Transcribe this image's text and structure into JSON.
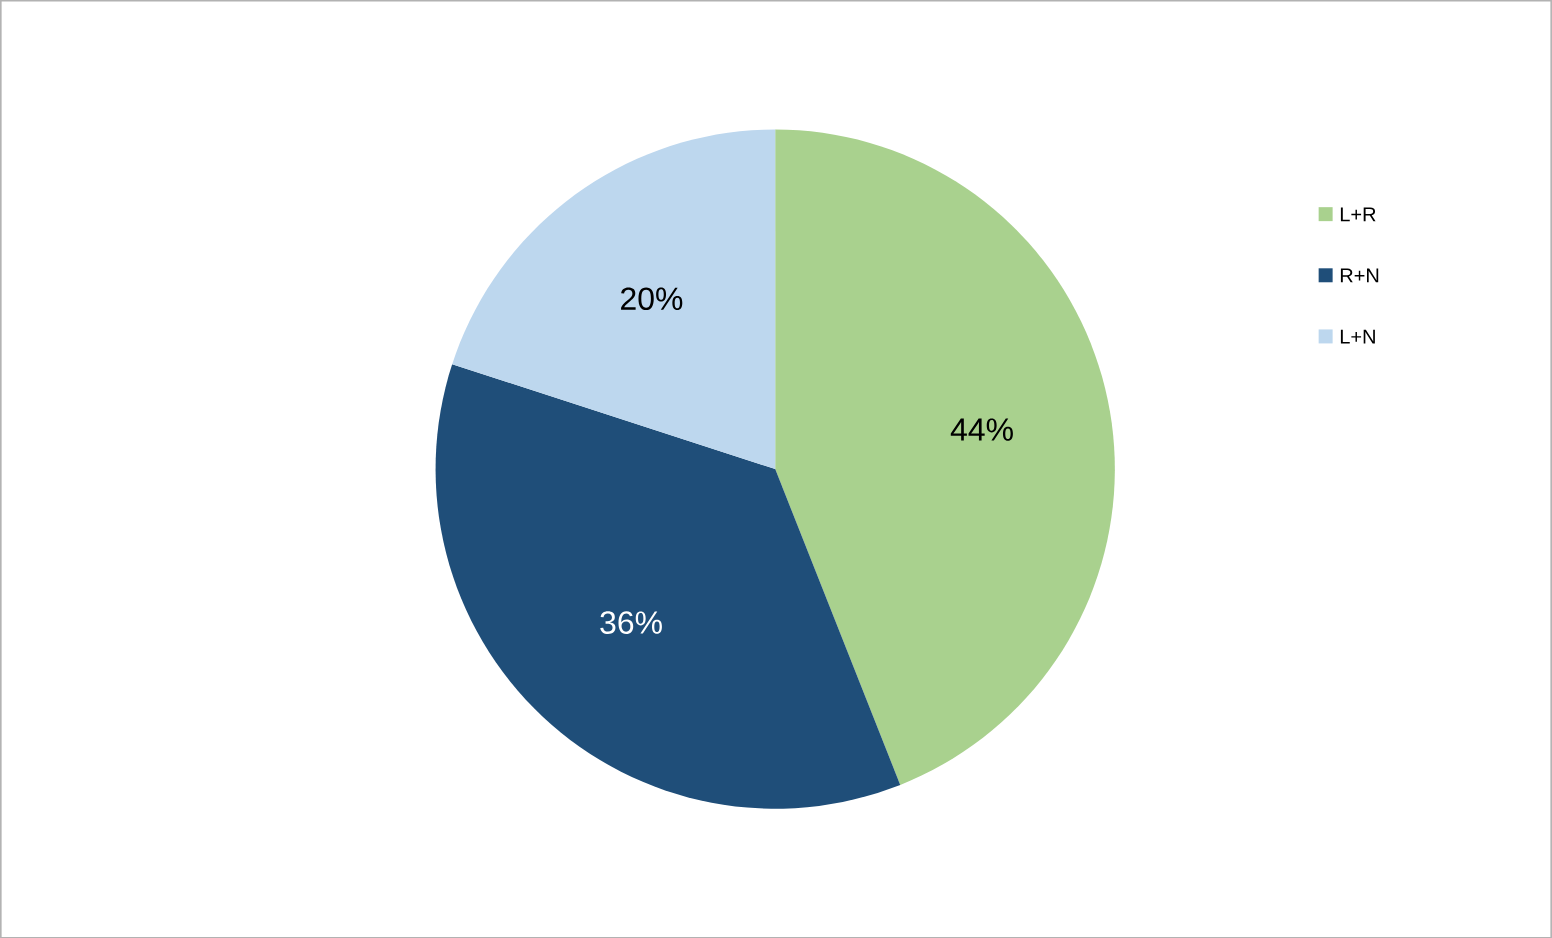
{
  "chart_data": {
    "type": "pie",
    "categories": [
      "L+R",
      "R+N",
      "L+N"
    ],
    "values": [
      44,
      36,
      20
    ],
    "colors": [
      "#a9d18e",
      "#1f4e79",
      "#bdd7ee"
    ],
    "value_labels": [
      "44%",
      "36%",
      "20%"
    ],
    "legend": "right"
  }
}
